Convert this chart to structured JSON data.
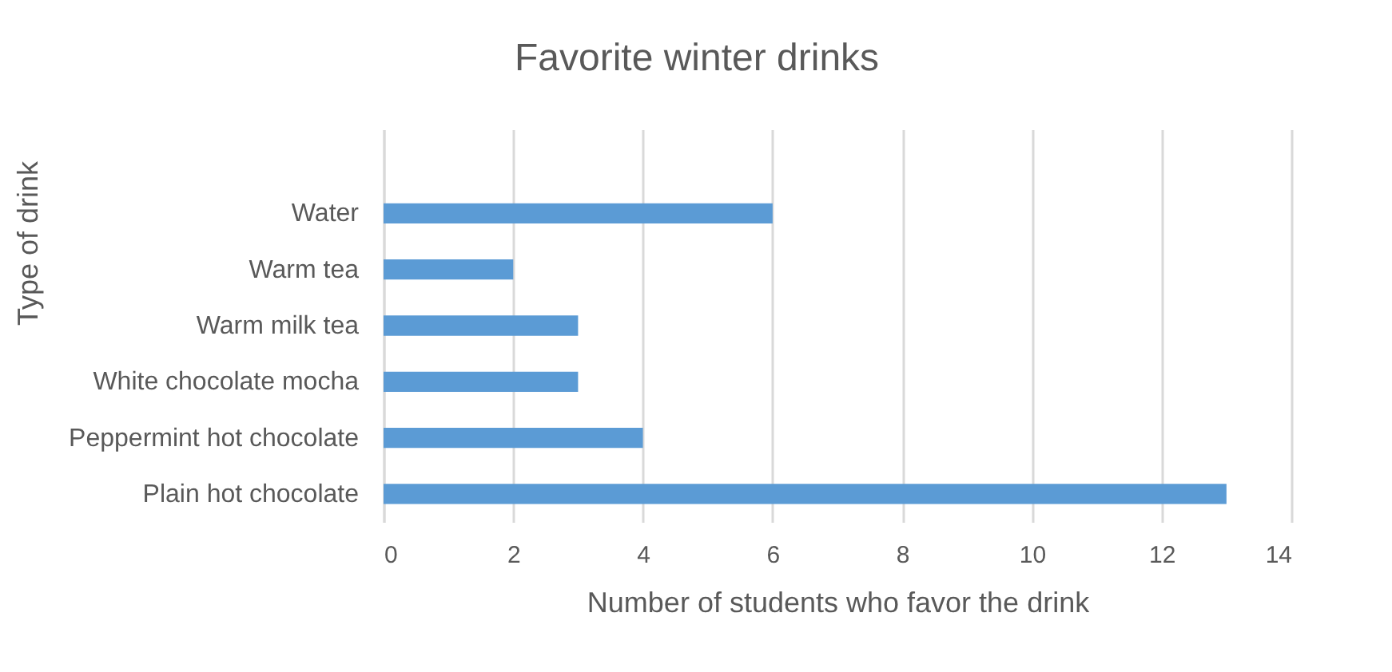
{
  "chart_data": {
    "type": "bar",
    "orientation": "horizontal",
    "title": "Favorite winter drinks",
    "xlabel": "Number of students who favor the drink",
    "ylabel": "Type of drink",
    "categories": [
      null,
      "Water",
      "Warm tea",
      "Warm milk tea",
      "White chocolate mocha",
      "Peppermint hot chocolate",
      "Plain hot chocolate"
    ],
    "values": [
      null,
      6,
      2,
      3,
      3,
      4,
      13
    ],
    "color": "#5b9bd5",
    "xlim": [
      0,
      14
    ],
    "xticks": [
      0,
      2,
      4,
      6,
      8,
      10,
      12,
      14
    ],
    "grid": "x"
  }
}
